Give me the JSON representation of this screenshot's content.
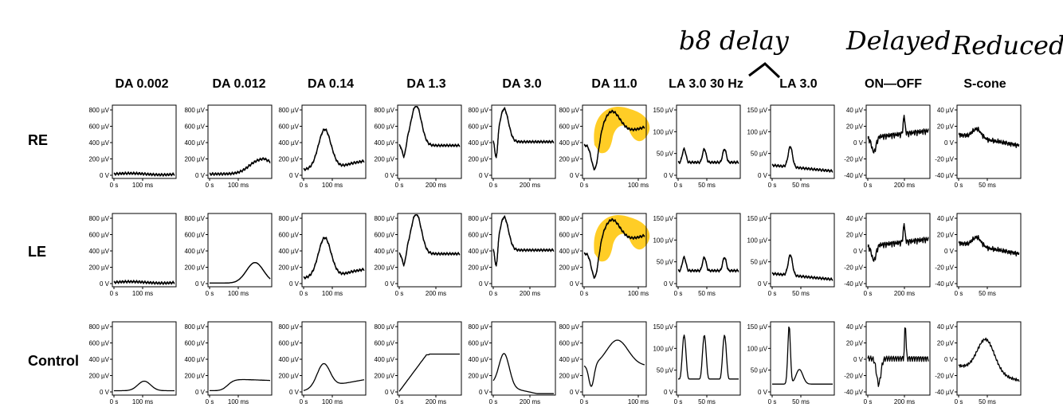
{
  "chart_data": {
    "type": "line",
    "columns": [
      "DA 0.002",
      "DA 0.012",
      "DA 0.14",
      "DA 1.3",
      "DA 3.0",
      "DA 11.0",
      "LA 3.0 30 Hz",
      "LA 3.0",
      "ON—OFF",
      "S-cone"
    ],
    "rows": [
      "RE",
      "LE",
      "Control"
    ],
    "y_ticks": {
      "dark": [
        "800 µV",
        "600 µV",
        "400 µV",
        "200 µV",
        "0 V"
      ],
      "da3": [
        "800 µV",
        "600 µV",
        "400 µV",
        "200 µV",
        "0 V"
      ],
      "la30": [
        "150 µV",
        "100 µV",
        "50 µV",
        "0 V"
      ],
      "la": [
        "150 µV",
        "100 µV",
        "50 µV",
        "0 V"
      ],
      "onoff": [
        "40 µV",
        "20 µV",
        "0 V",
        "-20 µV",
        "-40 µV"
      ],
      "scone": [
        "40 µV",
        "20 µV",
        "0 V",
        "-20 µV",
        "-40 µV"
      ]
    },
    "x_ticks": {
      "100ms": [
        "0 s",
        "100 ms"
      ],
      "200ms": [
        "0 s",
        "200 ms"
      ],
      "50ms": [
        "0 s",
        "50 ms"
      ]
    },
    "annotations": [
      "b8 delay",
      "Delayed",
      "Reduced"
    ],
    "highlight_color": "#FFC400",
    "trace_color": "#000000"
  }
}
